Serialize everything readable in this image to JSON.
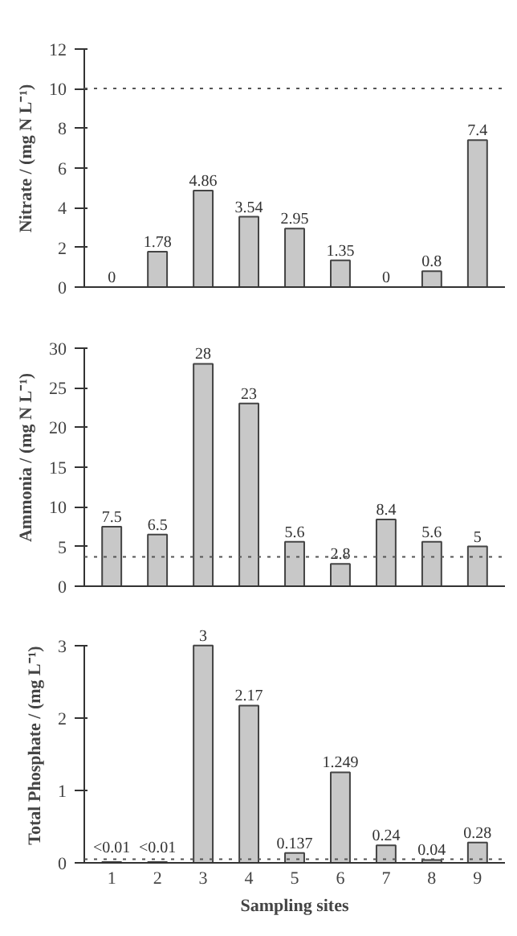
{
  "chart_data": [
    {
      "type": "bar",
      "ylabel": "Nitrate / (mg N L⁻¹)",
      "categories": [
        "1",
        "2",
        "3",
        "4",
        "5",
        "6",
        "7",
        "8",
        "9"
      ],
      "tick_labels": "y",
      "series": [
        {
          "color": "#c8c8c8",
          "values": [
            0,
            1.78,
            4.86,
            3.54,
            2.95,
            1.35,
            0,
            0.8,
            7.4
          ],
          "value_labels": [
            "0",
            "1.78",
            "4.86",
            "3.54",
            "2.95",
            "1.35",
            "0",
            "0.8",
            "7.4"
          ]
        }
      ],
      "ylim": [
        0,
        12
      ],
      "yticks": [
        0,
        2,
        4,
        6,
        8,
        10,
        12
      ],
      "ref_lines": [
        {
          "axis": "y",
          "value": 10,
          "color": "#555555",
          "line_style": "dotted"
        }
      ]
    },
    {
      "type": "bar",
      "ylabel": "Ammonia / (mg N L⁻¹)",
      "categories": [
        "1",
        "2",
        "3",
        "4",
        "5",
        "6",
        "7",
        "8",
        "9"
      ],
      "tick_labels": "y",
      "series": [
        {
          "color": "#c8c8c8",
          "values": [
            7.5,
            6.5,
            28,
            23,
            5.6,
            2.8,
            8.4,
            5.6,
            5
          ],
          "value_labels": [
            "7.5",
            "6.5",
            "28",
            "23",
            "5.6",
            "2.8",
            "8.4",
            "5.6",
            "5"
          ]
        }
      ],
      "ylim": [
        0,
        30
      ],
      "yticks": [
        0,
        5,
        10,
        15,
        20,
        25,
        30
      ],
      "ref_lines": [
        {
          "axis": "y",
          "value": 3.7,
          "color": "#555555",
          "line_style": "dotted"
        }
      ]
    },
    {
      "type": "bar",
      "ylabel": "Total Phosphate / (mg L⁻¹)",
      "xlabel": "Sampling sites",
      "categories": [
        "1",
        "2",
        "3",
        "4",
        "5",
        "6",
        "7",
        "8",
        "9"
      ],
      "series": [
        {
          "color": "#c8c8c8",
          "values": [
            0.01,
            0.01,
            3,
            2.17,
            0.137,
            1.249,
            0.24,
            0.04,
            0.28
          ],
          "value_labels": [
            "<0.01",
            "<0.01",
            "3",
            "2.17",
            "0.137",
            "1.249",
            "0.24",
            "0.04",
            "0.28"
          ]
        }
      ],
      "ylim": [
        0,
        3
      ],
      "yticks": [
        0,
        1,
        2,
        3
      ],
      "ref_lines": [
        {
          "axis": "y",
          "value": 0.05,
          "color": "#555555",
          "line_style": "dotted"
        }
      ]
    }
  ]
}
